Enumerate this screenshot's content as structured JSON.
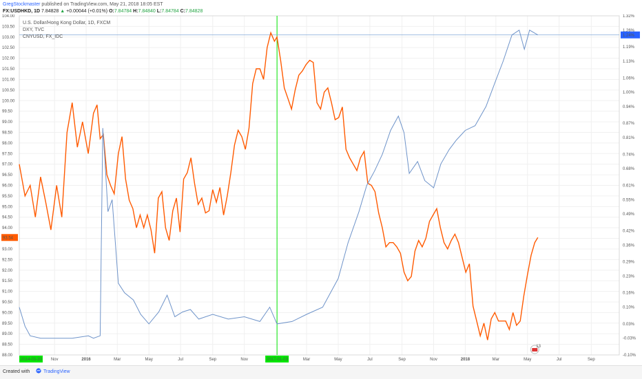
{
  "header": {
    "author": "GregStockmaster",
    "published": "published on TradingView.com, May 21, 2018 18:05 EST",
    "symbol": "FX:USDHKD, 1D",
    "price": "7.84828",
    "up_arrow": "▲",
    "change": "+0.00044 (+0.01%)",
    "o_label": "O:",
    "o_val": "7.84784",
    "h_label": "H:",
    "h_val": "7.84840",
    "l_label": "L:",
    "l_val": "7.84784",
    "c_label": "C:",
    "c_val": "7.84828"
  },
  "footer": {
    "created_with": "Created with",
    "brand": "TradingView"
  },
  "colors": {
    "usdhkd": "#ff5a00",
    "dxy": "#6e93c9",
    "cnyusd": "#6e93c9",
    "green_line": "#00e600",
    "badge_red": "#ff5a00",
    "badge_blue": "#2962ff",
    "green_badge": "#00e600"
  },
  "chart_data": {
    "type": "line",
    "legend": [
      "U.S. Dollar/Hong Kong Dollar, 1D, FXCM",
      "DXY, TVC",
      "CNYUSD, FX_IDC"
    ],
    "left_axis": {
      "ticks": [
        "104.00",
        "103.50",
        "103.00",
        "102.50",
        "102.00",
        "101.50",
        "101.00",
        "100.50",
        "100.00",
        "99.50",
        "99.00",
        "98.50",
        "98.00",
        "97.50",
        "97.00",
        "96.50",
        "96.00",
        "95.50",
        "95.00",
        "94.50",
        "94.00",
        "93.50",
        "93.00",
        "92.50",
        "92.00",
        "91.50",
        "91.00",
        "90.50",
        "90.00",
        "89.50",
        "89.00",
        "88.50",
        "88.00"
      ],
      "ylim": [
        88.0,
        104.0
      ]
    },
    "right_axis": {
      "ticks": [
        "1.32%",
        "1.26%",
        "1.19%",
        "1.13%",
        "1.06%",
        "1.00%",
        "0.94%",
        "0.87%",
        "0.81%",
        "0.74%",
        "0.68%",
        "0.61%",
        "0.55%",
        "0.49%",
        "0.42%",
        "0.36%",
        "0.29%",
        "0.23%",
        "0.16%",
        "0.10%",
        "0.03%",
        "-0.03%",
        "-0.10%"
      ],
      "ylim": [
        -0.1,
        1.32
      ]
    },
    "x_axis": {
      "labels": [
        "2014-03-20",
        "Nov",
        "2016",
        "Mar",
        "May",
        "Jul",
        "Sep",
        "Nov",
        "2017-01-03",
        "Mar",
        "May",
        "Jul",
        "Sep",
        "Nov",
        "2018",
        "Mar",
        "May",
        "Jul",
        "Sep"
      ],
      "xlim": [
        "2015-08-25",
        "2018-10-25"
      ]
    },
    "badges": {
      "left_value": "93.54",
      "right_value": "1.24%",
      "event_count": "13"
    },
    "crosshair": {
      "date": "2017-01-03",
      "value_pct": 1.24
    },
    "series": [
      {
        "name": "U.S. Dollar/Hong Kong Dollar, 1D, FXCM",
        "axis": "left",
        "points": [
          [
            "2015-08-25",
            97.0
          ],
          [
            "2015-09-05",
            95.5
          ],
          [
            "2015-09-15",
            96.0
          ],
          [
            "2015-09-25",
            94.5
          ],
          [
            "2015-10-05",
            96.4
          ],
          [
            "2015-10-15",
            95.2
          ],
          [
            "2015-10-25",
            93.9
          ],
          [
            "2015-11-05",
            96.0
          ],
          [
            "2015-11-15",
            94.5
          ],
          [
            "2015-11-25",
            98.5
          ],
          [
            "2015-12-05",
            99.9
          ],
          [
            "2015-12-15",
            97.8
          ],
          [
            "2015-12-25",
            99.0
          ],
          [
            "2016-01-05",
            97.5
          ],
          [
            "2016-01-15",
            99.4
          ],
          [
            "2016-01-22",
            99.8
          ],
          [
            "2016-01-28",
            98.2
          ],
          [
            "2016-02-03",
            98.4
          ],
          [
            "2016-02-10",
            96.5
          ],
          [
            "2016-02-17",
            96.0
          ],
          [
            "2016-02-24",
            95.6
          ],
          [
            "2016-03-03",
            97.5
          ],
          [
            "2016-03-10",
            98.3
          ],
          [
            "2016-03-17",
            96.3
          ],
          [
            "2016-03-24",
            95.3
          ],
          [
            "2016-03-31",
            94.9
          ],
          [
            "2016-04-07",
            94.0
          ],
          [
            "2016-04-14",
            94.6
          ],
          [
            "2016-04-21",
            94.0
          ],
          [
            "2016-04-28",
            94.6
          ],
          [
            "2016-05-05",
            93.9
          ],
          [
            "2016-05-12",
            92.8
          ],
          [
            "2016-05-19",
            95.4
          ],
          [
            "2016-05-26",
            95.7
          ],
          [
            "2016-06-02",
            94.0
          ],
          [
            "2016-06-09",
            93.4
          ],
          [
            "2016-06-16",
            94.8
          ],
          [
            "2016-06-23",
            95.4
          ],
          [
            "2016-06-30",
            93.8
          ],
          [
            "2016-07-07",
            96.3
          ],
          [
            "2016-07-14",
            96.6
          ],
          [
            "2016-07-21",
            97.3
          ],
          [
            "2016-07-28",
            96.1
          ],
          [
            "2016-08-04",
            95.1
          ],
          [
            "2016-08-11",
            95.4
          ],
          [
            "2016-08-18",
            94.7
          ],
          [
            "2016-08-25",
            94.8
          ],
          [
            "2016-09-01",
            95.8
          ],
          [
            "2016-09-08",
            95.2
          ],
          [
            "2016-09-15",
            95.9
          ],
          [
            "2016-09-22",
            94.6
          ],
          [
            "2016-09-29",
            95.5
          ],
          [
            "2016-10-06",
            96.6
          ],
          [
            "2016-10-13",
            97.9
          ],
          [
            "2016-10-20",
            98.6
          ],
          [
            "2016-10-27",
            98.3
          ],
          [
            "2016-11-03",
            97.7
          ],
          [
            "2016-11-10",
            98.7
          ],
          [
            "2016-11-17",
            100.8
          ],
          [
            "2016-11-24",
            101.5
          ],
          [
            "2016-12-01",
            101.5
          ],
          [
            "2016-12-08",
            101.0
          ],
          [
            "2016-12-15",
            102.5
          ],
          [
            "2016-12-22",
            103.2
          ],
          [
            "2016-12-29",
            102.8
          ],
          [
            "2017-01-03",
            103.0
          ],
          [
            "2017-01-10",
            101.9
          ],
          [
            "2017-01-17",
            100.6
          ],
          [
            "2017-01-24",
            100.1
          ],
          [
            "2017-01-31",
            99.6
          ],
          [
            "2017-02-07",
            100.5
          ],
          [
            "2017-02-14",
            101.2
          ],
          [
            "2017-02-21",
            101.4
          ],
          [
            "2017-02-28",
            101.7
          ],
          [
            "2017-03-07",
            101.9
          ],
          [
            "2017-03-14",
            101.8
          ],
          [
            "2017-03-21",
            99.9
          ],
          [
            "2017-03-28",
            99.6
          ],
          [
            "2017-04-04",
            100.4
          ],
          [
            "2017-04-11",
            100.6
          ],
          [
            "2017-04-18",
            99.9
          ],
          [
            "2017-04-25",
            99.1
          ],
          [
            "2017-05-02",
            99.2
          ],
          [
            "2017-05-09",
            99.7
          ],
          [
            "2017-05-16",
            97.7
          ],
          [
            "2017-05-23",
            97.3
          ],
          [
            "2017-05-30",
            97.0
          ],
          [
            "2017-06-06",
            96.7
          ],
          [
            "2017-06-13",
            97.3
          ],
          [
            "2017-06-20",
            97.6
          ],
          [
            "2017-06-27",
            96.1
          ],
          [
            "2017-07-04",
            96.0
          ],
          [
            "2017-07-11",
            95.7
          ],
          [
            "2017-07-18",
            94.7
          ],
          [
            "2017-07-25",
            94.0
          ],
          [
            "2017-08-01",
            93.1
          ],
          [
            "2017-08-08",
            93.3
          ],
          [
            "2017-08-15",
            93.3
          ],
          [
            "2017-08-22",
            93.1
          ],
          [
            "2017-08-29",
            92.8
          ],
          [
            "2017-09-05",
            91.9
          ],
          [
            "2017-09-12",
            91.5
          ],
          [
            "2017-09-19",
            91.7
          ],
          [
            "2017-09-26",
            92.9
          ],
          [
            "2017-10-03",
            93.4
          ],
          [
            "2017-10-10",
            93.1
          ],
          [
            "2017-10-17",
            93.5
          ],
          [
            "2017-10-24",
            94.3
          ],
          [
            "2017-10-31",
            94.6
          ],
          [
            "2017-11-07",
            94.9
          ],
          [
            "2017-11-14",
            94.0
          ],
          [
            "2017-11-21",
            93.3
          ],
          [
            "2017-11-28",
            93.0
          ],
          [
            "2017-12-05",
            93.4
          ],
          [
            "2017-12-12",
            93.7
          ],
          [
            "2017-12-19",
            93.3
          ],
          [
            "2017-12-26",
            92.6
          ],
          [
            "2018-01-02",
            91.9
          ],
          [
            "2018-01-09",
            92.3
          ],
          [
            "2018-01-16",
            90.3
          ],
          [
            "2018-01-23",
            89.6
          ],
          [
            "2018-01-30",
            88.9
          ],
          [
            "2018-02-06",
            89.5
          ],
          [
            "2018-02-13",
            88.7
          ],
          [
            "2018-02-20",
            89.7
          ],
          [
            "2018-02-27",
            90.0
          ],
          [
            "2018-03-06",
            89.6
          ],
          [
            "2018-03-13",
            89.6
          ],
          [
            "2018-03-20",
            89.6
          ],
          [
            "2018-03-27",
            89.2
          ],
          [
            "2018-04-03",
            90.0
          ],
          [
            "2018-04-10",
            89.4
          ],
          [
            "2018-04-17",
            89.6
          ],
          [
            "2018-04-24",
            90.8
          ],
          [
            "2018-05-01",
            91.8
          ],
          [
            "2018-05-08",
            92.7
          ],
          [
            "2018-05-15",
            93.3
          ],
          [
            "2018-05-21",
            93.54
          ]
        ]
      },
      {
        "name": "DXY, TVC",
        "axis": "right",
        "points": [
          [
            "2015-08-25",
            0.1
          ],
          [
            "2015-09-05",
            0.02
          ],
          [
            "2015-09-15",
            -0.02
          ],
          [
            "2015-10-05",
            -0.03
          ],
          [
            "2015-11-05",
            -0.03
          ],
          [
            "2015-12-05",
            -0.03
          ],
          [
            "2016-01-05",
            -0.02
          ],
          [
            "2016-01-15",
            -0.03
          ],
          [
            "2016-01-28",
            -0.02
          ],
          [
            "2016-02-02",
            0.85
          ],
          [
            "2016-02-06",
            0.72
          ],
          [
            "2016-02-12",
            0.5
          ],
          [
            "2016-02-20",
            0.55
          ],
          [
            "2016-03-03",
            0.2
          ],
          [
            "2016-03-15",
            0.16
          ],
          [
            "2016-04-01",
            0.13
          ],
          [
            "2016-04-15",
            0.07
          ],
          [
            "2016-05-01",
            0.03
          ],
          [
            "2016-05-20",
            0.08
          ],
          [
            "2016-06-05",
            0.15
          ],
          [
            "2016-06-20",
            0.06
          ],
          [
            "2016-07-05",
            0.08
          ],
          [
            "2016-07-20",
            0.09
          ],
          [
            "2016-08-05",
            0.05
          ],
          [
            "2016-09-01",
            0.07
          ],
          [
            "2016-10-01",
            0.05
          ],
          [
            "2016-11-01",
            0.06
          ],
          [
            "2016-12-01",
            0.04
          ],
          [
            "2016-12-20",
            0.1
          ],
          [
            "2017-01-03",
            0.03
          ],
          [
            "2017-02-01",
            0.04
          ],
          [
            "2017-03-01",
            0.07
          ],
          [
            "2017-04-01",
            0.1
          ],
          [
            "2017-05-01",
            0.22
          ],
          [
            "2017-05-20",
            0.37
          ],
          [
            "2017-06-10",
            0.5
          ],
          [
            "2017-06-25",
            0.61
          ],
          [
            "2017-07-10",
            0.67
          ],
          [
            "2017-07-25",
            0.74
          ],
          [
            "2017-08-10",
            0.84
          ],
          [
            "2017-08-25",
            0.9
          ],
          [
            "2017-09-05",
            0.83
          ],
          [
            "2017-09-15",
            0.66
          ],
          [
            "2017-10-01",
            0.71
          ],
          [
            "2017-10-15",
            0.63
          ],
          [
            "2017-11-01",
            0.6
          ],
          [
            "2017-11-15",
            0.7
          ],
          [
            "2017-12-01",
            0.76
          ],
          [
            "2017-12-15",
            0.8
          ],
          [
            "2018-01-01",
            0.84
          ],
          [
            "2018-01-20",
            0.86
          ],
          [
            "2018-02-10",
            0.94
          ],
          [
            "2018-03-01",
            1.05
          ],
          [
            "2018-03-15",
            1.13
          ],
          [
            "2018-04-01",
            1.24
          ],
          [
            "2018-04-15",
            1.26
          ],
          [
            "2018-04-25",
            1.18
          ],
          [
            "2018-05-05",
            1.26
          ],
          [
            "2018-05-21",
            1.24
          ]
        ]
      }
    ]
  }
}
